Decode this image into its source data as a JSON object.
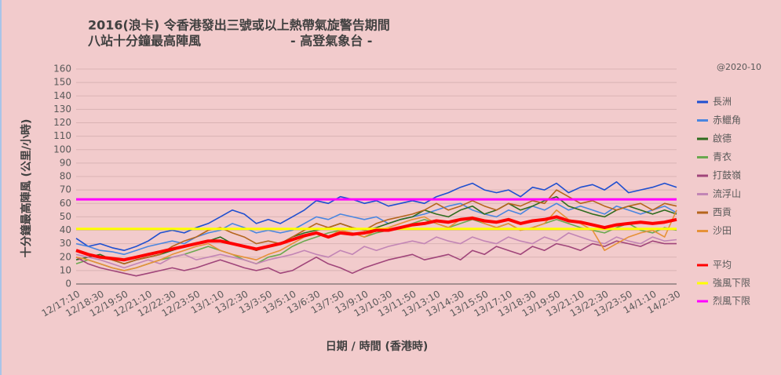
{
  "chart_data": {
    "type": "line",
    "title": "2016(浪卡)  令香港發出三號或以上熱帶氣旋警告期間",
    "subtitle": "八站十分鐘最高陣風",
    "source": "- 高登氣象台 -",
    "note": "@2020-10",
    "x_label": "日期 / 時間 (香港時)",
    "y_label": "十分鐘最高陣風 (公里/小時)",
    "categories": [
      "12/17:10",
      null,
      "12/18:30",
      null,
      "12/19:50",
      null,
      "12/21:10",
      null,
      "12/22:30",
      null,
      "12/23:50",
      null,
      "13/1:10",
      null,
      "13/2:30",
      null,
      "13/3:50",
      null,
      "13/5:10",
      null,
      "13/6:30",
      null,
      "13/7:50",
      null,
      "13/9:10",
      null,
      "13/10:30",
      null,
      "13/11:50",
      null,
      "13/13:10",
      null,
      "13/14:30",
      null,
      "13/15:50",
      null,
      "13/17:10",
      null,
      "13/18:30",
      null,
      "13/19:50",
      null,
      "13/21:10",
      null,
      "13/22:30",
      null,
      "13/23:50",
      null,
      "14/1:10",
      null,
      "14/2:30"
    ],
    "series": [
      {
        "name": "長洲",
        "color": "#1f4fd0",
        "values": [
          34,
          28,
          30,
          27,
          25,
          28,
          32,
          38,
          40,
          38,
          42,
          45,
          50,
          55,
          52,
          45,
          48,
          45,
          50,
          55,
          62,
          60,
          65,
          63,
          60,
          62,
          58,
          60,
          62,
          60,
          65,
          68,
          72,
          75,
          70,
          68,
          70,
          65,
          72,
          70,
          75,
          68,
          72,
          74,
          70,
          76,
          68,
          70,
          72,
          75,
          72
        ]
      },
      {
        "name": "赤鱲角",
        "color": "#4a86e0",
        "values": [
          30,
          28,
          25,
          24,
          22,
          25,
          28,
          30,
          32,
          30,
          35,
          38,
          40,
          45,
          42,
          38,
          40,
          38,
          40,
          45,
          50,
          48,
          52,
          50,
          48,
          50,
          45,
          48,
          50,
          52,
          55,
          58,
          60,
          55,
          52,
          50,
          55,
          52,
          58,
          55,
          60,
          55,
          58,
          55,
          52,
          58,
          55,
          52,
          55,
          58,
          53
        ]
      },
      {
        "name": "啟德",
        "color": "#2e6b1e",
        "values": [
          18,
          20,
          22,
          18,
          15,
          18,
          20,
          22,
          25,
          28,
          30,
          32,
          35,
          30,
          28,
          25,
          28,
          30,
          35,
          38,
          40,
          42,
          45,
          42,
          40,
          42,
          45,
          48,
          50,
          55,
          52,
          50,
          55,
          58,
          52,
          55,
          60,
          55,
          58,
          62,
          65,
          58,
          55,
          52,
          50,
          55,
          58,
          55,
          52,
          55,
          52
        ]
      },
      {
        "name": "青衣",
        "color": "#6aa84f",
        "values": [
          15,
          18,
          15,
          12,
          10,
          12,
          15,
          18,
          20,
          22,
          25,
          28,
          25,
          22,
          18,
          15,
          20,
          22,
          28,
          32,
          35,
          38,
          40,
          38,
          35,
          38,
          40,
          42,
          45,
          48,
          45,
          42,
          45,
          48,
          45,
          42,
          45,
          40,
          42,
          45,
          48,
          45,
          42,
          40,
          38,
          42,
          45,
          40,
          38,
          42,
          40
        ]
      },
      {
        "name": "打鼓嶺",
        "color": "#a0457a",
        "values": [
          20,
          15,
          12,
          10,
          8,
          6,
          8,
          10,
          12,
          10,
          12,
          15,
          18,
          15,
          12,
          10,
          12,
          8,
          10,
          15,
          20,
          15,
          12,
          8,
          12,
          15,
          18,
          20,
          22,
          18,
          20,
          22,
          18,
          25,
          22,
          28,
          25,
          22,
          28,
          25,
          30,
          28,
          25,
          30,
          28,
          32,
          30,
          28,
          32,
          30,
          30
        ]
      },
      {
        "name": "流浮山",
        "color": "#c285b5",
        "values": [
          22,
          20,
          18,
          15,
          12,
          15,
          18,
          15,
          20,
          22,
          18,
          20,
          22,
          20,
          18,
          15,
          18,
          20,
          22,
          25,
          22,
          20,
          25,
          22,
          28,
          25,
          28,
          30,
          32,
          30,
          35,
          32,
          30,
          35,
          32,
          30,
          35,
          32,
          30,
          35,
          32,
          38,
          35,
          32,
          30,
          35,
          32,
          30,
          35,
          32,
          33
        ]
      },
      {
        "name": "西貢",
        "color": "#b5651d",
        "values": [
          25,
          22,
          20,
          18,
          15,
          18,
          20,
          22,
          28,
          32,
          35,
          40,
          42,
          38,
          35,
          30,
          32,
          30,
          35,
          40,
          45,
          42,
          45,
          42,
          40,
          45,
          48,
          50,
          52,
          55,
          60,
          55,
          58,
          62,
          58,
          55,
          60,
          58,
          62,
          60,
          70,
          65,
          60,
          62,
          58,
          55,
          58,
          60,
          55,
          60,
          58
        ]
      },
      {
        "name": "沙田",
        "color": "#e69138",
        "values": [
          20,
          18,
          15,
          12,
          10,
          12,
          15,
          18,
          22,
          25,
          28,
          30,
          25,
          22,
          20,
          18,
          22,
          25,
          30,
          35,
          38,
          35,
          40,
          38,
          35,
          40,
          42,
          45,
          48,
          50,
          45,
          42,
          48,
          50,
          45,
          42,
          45,
          40,
          42,
          45,
          55,
          48,
          45,
          40,
          25,
          30,
          35,
          38,
          40,
          35,
          55
        ]
      },
      {
        "name": "平均",
        "color": "#ff0000",
        "values": [
          25,
          22,
          20,
          19,
          18,
          20,
          22,
          24,
          26,
          28,
          30,
          32,
          32,
          30,
          28,
          26,
          28,
          30,
          33,
          36,
          38,
          35,
          38,
          37,
          38,
          40,
          40,
          42,
          44,
          45,
          47,
          46,
          48,
          49,
          47,
          46,
          48,
          45,
          47,
          48,
          50,
          47,
          46,
          44,
          42,
          44,
          45,
          46,
          45,
          46,
          48
        ]
      }
    ],
    "reference_lines": [
      {
        "name": "強風下限",
        "color": "#ffff00",
        "value": 41
      },
      {
        "name": "烈風下限",
        "color": "#ff00ff",
        "value": 63
      }
    ],
    "ylim": [
      0,
      160
    ],
    "yticks": [
      0,
      10,
      20,
      30,
      40,
      50,
      60,
      70,
      80,
      90,
      100,
      110,
      120,
      130,
      140,
      150,
      160
    ],
    "grid": true,
    "legend": "right"
  }
}
